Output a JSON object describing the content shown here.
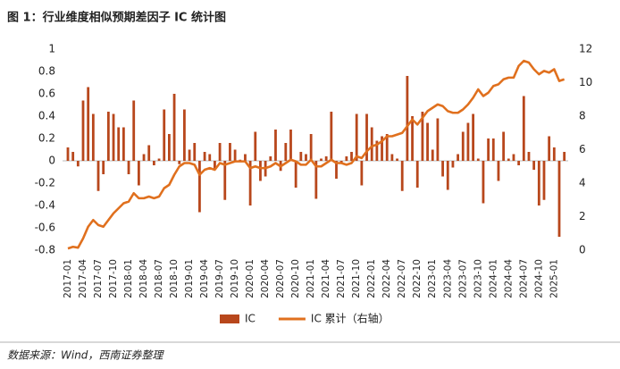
{
  "chart_data": {
    "type": "bar",
    "title": "图 1：行业维度相似预期差因子 IC 统计图",
    "source": "数据来源：Wind，西南证券整理",
    "categories": [
      "2017-01",
      null,
      null,
      "2017-04",
      null,
      null,
      "2017-07",
      null,
      null,
      "2017-10",
      null,
      null,
      "2018-01",
      null,
      null,
      "2018-04",
      null,
      null,
      "2018-07",
      null,
      null,
      "2018-10",
      null,
      null,
      "2019-01",
      null,
      null,
      "2019-04",
      null,
      null,
      "2019-07",
      null,
      null,
      "2019-10",
      null,
      null,
      "2020-01",
      null,
      null,
      "2020-04",
      null,
      null,
      "2020-07",
      null,
      null,
      "2020-10",
      null,
      null,
      "2021-01",
      null,
      null,
      "2021-04",
      null,
      null,
      "2021-07",
      null,
      null,
      "2021-10",
      null,
      null,
      "2022-01",
      null,
      null,
      "2022-04",
      null,
      null,
      "2022-07",
      null,
      null,
      "2022-10",
      null,
      null,
      "2023-01",
      null,
      null,
      "2023-04",
      null,
      null,
      "2023-07",
      null,
      null,
      "2023-10",
      null,
      null,
      "2024-01",
      null,
      null,
      "2024-04",
      null,
      null,
      "2024-07",
      null,
      null,
      "2024-10",
      null,
      null,
      "2025-01",
      null,
      null
    ],
    "series": [
      {
        "name": "IC",
        "type": "bar",
        "color": "#b8471c",
        "values": [
          0.12,
          0.08,
          -0.05,
          0.54,
          0.66,
          0.42,
          -0.27,
          -0.12,
          0.44,
          0.42,
          0.3,
          0.3,
          -0.12,
          0.54,
          -0.22,
          0.06,
          0.14,
          -0.04,
          0.02,
          0.46,
          0.24,
          0.6,
          -0.03,
          0.46,
          0.1,
          0.16,
          -0.46,
          0.08,
          0.06,
          -0.08,
          0.16,
          -0.35,
          0.16,
          0.1,
          0.01,
          0.06,
          -0.4,
          0.26,
          -0.18,
          -0.14,
          0.04,
          0.28,
          -0.09,
          0.16,
          0.28,
          -0.24,
          0.08,
          0.06,
          0.24,
          -0.34,
          0.02,
          0.04,
          0.44,
          -0.16,
          -0.02,
          0.04,
          0.08,
          0.42,
          -0.22,
          0.42,
          0.3,
          0.18,
          0.22,
          0.24,
          0.06,
          0.02,
          -0.27,
          0.76,
          0.4,
          -0.24,
          0.44,
          0.34,
          0.1,
          0.38,
          -0.14,
          -0.26,
          -0.06,
          0.06,
          0.26,
          0.34,
          0.42,
          0.02,
          -0.38,
          0.2,
          0.2,
          -0.18,
          0.26,
          0.02,
          0.06,
          -0.04,
          0.58,
          0.08,
          -0.08,
          -0.4,
          -0.35,
          0.22,
          0.12,
          -0.68,
          0.08
        ]
      },
      {
        "name": "IC 累计（右轴）",
        "type": "line",
        "axis": "y2",
        "color": "#e0701e",
        "values": [
          0.1,
          0.2,
          0.15,
          0.7,
          1.4,
          1.8,
          1.5,
          1.4,
          1.8,
          2.2,
          2.5,
          2.8,
          2.9,
          3.4,
          3.1,
          3.1,
          3.2,
          3.1,
          3.2,
          3.7,
          3.9,
          4.5,
          5.0,
          5.2,
          5.2,
          5.1,
          4.5,
          4.8,
          4.9,
          4.8,
          5.2,
          5.1,
          5.2,
          5.3,
          5.3,
          5.3,
          4.9,
          5.0,
          4.9,
          4.9,
          5.0,
          5.2,
          5.0,
          5.2,
          5.4,
          5.3,
          5.1,
          5.1,
          5.4,
          5.0,
          5.0,
          5.2,
          5.4,
          5.2,
          5.2,
          5.1,
          5.2,
          5.6,
          5.5,
          5.9,
          6.2,
          6.3,
          6.5,
          6.8,
          6.8,
          6.9,
          7.0,
          7.4,
          7.8,
          7.5,
          7.9,
          8.3,
          8.5,
          8.7,
          8.6,
          8.3,
          8.2,
          8.2,
          8.4,
          8.7,
          9.1,
          9.6,
          9.2,
          9.4,
          9.8,
          9.9,
          10.2,
          10.3,
          10.3,
          11.0,
          11.3,
          11.2,
          10.8,
          10.5,
          10.7,
          10.6,
          10.8,
          10.1,
          10.2
        ]
      }
    ],
    "ylim": [
      -0.8,
      1
    ],
    "yticks": [
      -0.8,
      -0.6,
      -0.4,
      -0.2,
      0,
      0.2,
      0.4,
      0.6,
      0.8,
      1
    ],
    "y2lim": [
      0,
      12
    ],
    "y2ticks": [
      0,
      2,
      4,
      6,
      8,
      10,
      12
    ],
    "legend": "bottom"
  }
}
